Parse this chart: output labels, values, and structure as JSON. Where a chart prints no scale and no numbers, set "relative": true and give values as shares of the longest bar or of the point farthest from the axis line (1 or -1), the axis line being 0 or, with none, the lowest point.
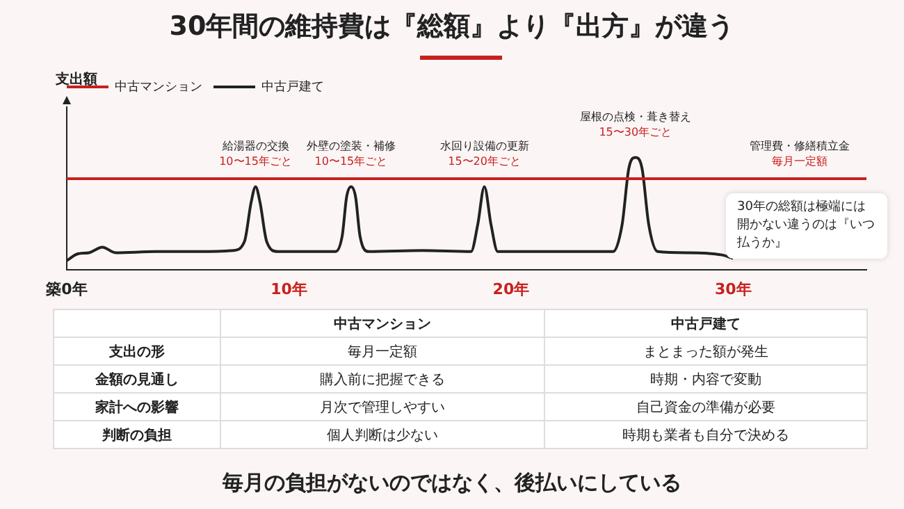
{
  "chart_data": [
    {
      "type": "line",
      "title": "30年間の維持費は『総額』より『出方』が違う",
      "ylabel": "支出額",
      "relative": true,
      "xlim": [
        0,
        36
      ],
      "xticks": [
        {
          "value": 0,
          "label": "築0年"
        },
        {
          "value": 10,
          "label": "10年"
        },
        {
          "value": 20,
          "label": "20年"
        },
        {
          "value": 30,
          "label": "30年"
        }
      ],
      "legend": "top left",
      "grid": false,
      "marker": "none",
      "series": [
        {
          "name": "中古マンション",
          "color": "#c8201e",
          "x": [
            0,
            36
          ],
          "values": [
            0.81,
            0.81
          ]
        },
        {
          "name": "中古戸建て",
          "color": "#222222",
          "x": [
            0,
            0.5,
            1,
            1.6,
            2.2,
            4,
            6,
            7.5,
            8,
            8.3,
            8.5,
            8.7,
            9,
            9.5,
            12.1,
            12.4,
            12.6,
            12.8,
            13,
            13.2,
            13.6,
            16,
            18.2,
            18.5,
            18.8,
            19.1,
            19.4,
            22,
            24.6,
            25,
            25.3,
            25.6,
            25.9,
            26.2,
            26.6,
            28,
            29.5,
            30
          ],
          "values": [
            0.08,
            0.14,
            0.15,
            0.2,
            0.15,
            0.16,
            0.16,
            0.17,
            0.25,
            0.6,
            0.74,
            0.6,
            0.25,
            0.16,
            0.16,
            0.3,
            0.65,
            0.74,
            0.65,
            0.3,
            0.16,
            0.17,
            0.16,
            0.4,
            0.74,
            0.4,
            0.16,
            0.16,
            0.16,
            0.4,
            0.9,
            1,
            0.9,
            0.4,
            0.16,
            0.15,
            0.13,
            0.1
          ]
        }
      ],
      "annotations": [
        {
          "text": "給湯器の交換\n10〜15年ごと",
          "x": 8.5,
          "y": 0.74
        },
        {
          "text": "外壁の塗装・補修\n10〜15年ごと",
          "x": 12.8,
          "y": 0.74
        },
        {
          "text": "水回り設備の更新\n15〜20年ごと",
          "x": 18.8,
          "y": 0.74
        },
        {
          "text": "屋根の点検・葺き替え\n15〜30年ごと",
          "x": 25.6,
          "y": 1
        },
        "管理費・修繕積立金",
        "毎月一定額",
        "30年の総額は極端には開かない違うのは『いつ払うか』"
      ]
    },
    {
      "type": "other",
      "categories": [
        null,
        "中古マンション",
        "中古戸建て"
      ],
      "y_categories": [
        "支出の形",
        "金額の見通し",
        "家計への影響",
        "判断の負担"
      ],
      "cell_labels": [
        [
          "毎月一定額",
          "まとまった額が発生"
        ],
        [
          "購入前に把握できる",
          "時期・内容で変動"
        ],
        [
          "月次で管理しやすい",
          "自己資金の準備が必要"
        ],
        [
          "個人判断は少ない",
          "時期も業者も自分で決める"
        ]
      ],
      "annotations": [
        "毎月の負担がないのではなく、後払いにしている"
      ]
    }
  ]
}
